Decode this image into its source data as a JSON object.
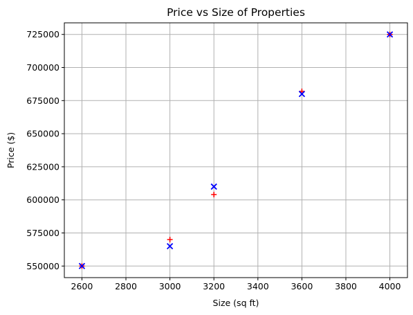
{
  "chart_data": {
    "type": "scatter",
    "title": "Price vs Size of Properties",
    "xlabel": "Size (sq ft)",
    "ylabel": "Price ($)",
    "xlim": [
      2520,
      4080
    ],
    "ylim": [
      541250,
      733750
    ],
    "x_ticks": [
      2600,
      2800,
      3000,
      3200,
      3400,
      3600,
      3800,
      4000
    ],
    "y_ticks": [
      550000,
      575000,
      600000,
      625000,
      650000,
      675000,
      700000,
      725000
    ],
    "grid": true,
    "series": [
      {
        "marker": "+",
        "color": "#ff0000",
        "points": [
          {
            "x": 2600,
            "y": 550000
          },
          {
            "x": 3000,
            "y": 570000
          },
          {
            "x": 3200,
            "y": 604000
          },
          {
            "x": 3600,
            "y": 682000
          },
          {
            "x": 4000,
            "y": 725000
          }
        ]
      },
      {
        "marker": "x",
        "color": "#0000ff",
        "points": [
          {
            "x": 2600,
            "y": 550000
          },
          {
            "x": 3000,
            "y": 565000
          },
          {
            "x": 3200,
            "y": 610000
          },
          {
            "x": 3600,
            "y": 680000
          },
          {
            "x": 4000,
            "y": 725000
          }
        ]
      }
    ]
  }
}
